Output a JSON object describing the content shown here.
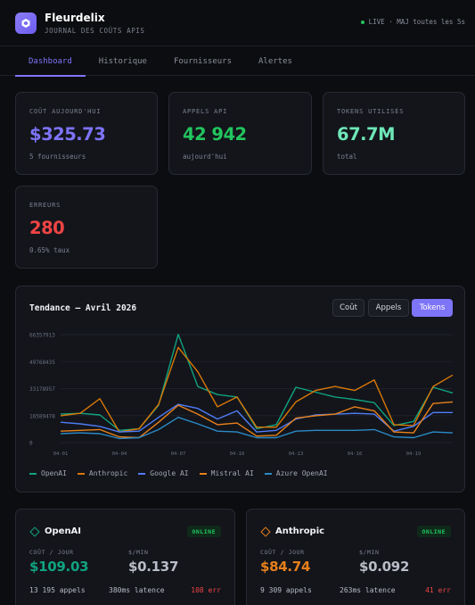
{
  "header": {
    "title": "Fleurdelix",
    "subtitle": "JOURNAL DES COÛTS APIS",
    "live_status": "LIVE · MAJ toutes les 5s",
    "logo_icon": "hexagon-icon"
  },
  "tabs": [
    {
      "label": "Dashboard",
      "active": true
    },
    {
      "label": "Historique",
      "active": false
    },
    {
      "label": "Fournisseurs",
      "active": false
    },
    {
      "label": "Alertes",
      "active": false
    }
  ],
  "stats": [
    {
      "label": "COÛT AUJOURD'HUI",
      "value": "$325.73",
      "sub": "5 fournisseurs",
      "color": "#7e74f8"
    },
    {
      "label": "APPELS API",
      "value": "42 942",
      "sub": "aujourd'hui",
      "color": "#22c55e"
    },
    {
      "label": "TOKENS UTILISÉS",
      "value": "67.7M",
      "sub": "total",
      "color": "#6ee7b7"
    },
    {
      "label": "ERREURS",
      "value": "280",
      "sub": "0.65% taux",
      "color": "#ef4444"
    }
  ],
  "trend": {
    "title": "Tendance — Avril 2026",
    "buttons": [
      {
        "label": "Coût",
        "active": false
      },
      {
        "label": "Appels",
        "active": false
      },
      {
        "label": "Tokens",
        "active": true
      }
    ]
  },
  "chart_data": {
    "type": "line",
    "x": [
      "04-01",
      "04-02",
      "04-03",
      "04-04",
      "04-05",
      "04-06",
      "04-07",
      "04-08",
      "04-09",
      "04-10",
      "04-11",
      "04-12",
      "04-13",
      "04-14",
      "04-15",
      "04-16",
      "04-17",
      "04-18",
      "04-19",
      "04-20",
      "04-21"
    ],
    "x_ticks": [
      "04-01",
      "04-04",
      "04-07",
      "04-10",
      "04-13",
      "04-16",
      "04-19"
    ],
    "y_ticks": [
      "66357913",
      "49768435",
      "33178957",
      "16589478",
      "0"
    ],
    "ylim": [
      0,
      66357913
    ],
    "grid": true,
    "legend": "bottom-left",
    "series": [
      {
        "name": "OpenAI",
        "color": "#10a37f",
        "values": [
          17500000,
          18000000,
          17000000,
          7500000,
          8500000,
          23000000,
          66500000,
          34500000,
          29500000,
          28000000,
          8500000,
          11000000,
          34000000,
          31000000,
          28000000,
          26500000,
          24500000,
          10500000,
          13000000,
          34000000,
          30500000
        ]
      },
      {
        "name": "Anthropic",
        "color": "#d97706",
        "values": [
          16500000,
          18000000,
          27000000,
          6500000,
          8500000,
          23500000,
          58500000,
          43500000,
          22000000,
          28000000,
          9500000,
          9500000,
          25000000,
          32000000,
          34500000,
          32000000,
          38500000,
          11000000,
          10500000,
          34500000,
          41500000
        ]
      },
      {
        "name": "Google AI",
        "color": "#4f7cf6",
        "values": [
          12500000,
          11500000,
          10000000,
          6500000,
          7000000,
          15500000,
          23500000,
          21000000,
          14500000,
          19500000,
          6500000,
          7500000,
          14500000,
          17000000,
          17500000,
          18000000,
          17500000,
          7000000,
          10000000,
          18500000,
          18500000
        ]
      },
      {
        "name": "Mistral AI",
        "color": "#e8801a",
        "values": [
          7000000,
          7500000,
          8000000,
          3500000,
          3000000,
          12500000,
          23000000,
          17500000,
          11000000,
          12000000,
          4000000,
          4500000,
          15000000,
          16500000,
          17500000,
          22000000,
          19500000,
          6500000,
          6000000,
          24000000,
          25000000
        ]
      },
      {
        "name": "Azure OpenAI",
        "color": "#2b8ac6",
        "values": [
          5500000,
          6000000,
          5500000,
          2500000,
          3000000,
          8000000,
          15500000,
          11500000,
          7000000,
          6500000,
          3000000,
          3000000,
          7000000,
          7500000,
          7500000,
          7500000,
          8000000,
          3500000,
          3000000,
          6500000,
          6000000
        ]
      }
    ]
  },
  "providers": [
    {
      "name": "OpenAI",
      "status": "ONLINE",
      "icon": "diamond-icon",
      "color": "#10a37f",
      "cost_label": "COÛT / JOUR",
      "cost": "$109.03",
      "rate_label": "$/MIN",
      "rate": "$0.137",
      "calls": "13 195 appels",
      "latency": "380ms latence",
      "errors": "108 err"
    },
    {
      "name": "Anthropic",
      "status": "ONLINE",
      "icon": "diamond-icon",
      "color": "#e8801a",
      "cost_label": "COÛT / JOUR",
      "cost": "$84.74",
      "rate_label": "$/MIN",
      "rate": "$0.092",
      "calls": "9 309 appels",
      "latency": "263ms latence",
      "errors": "41 err"
    }
  ]
}
